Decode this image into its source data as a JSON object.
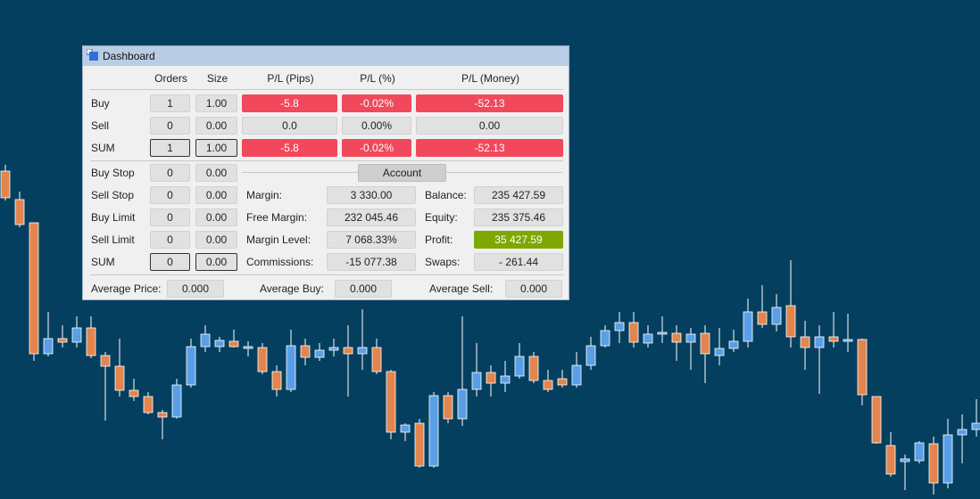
{
  "window": {
    "title": "Dashboard"
  },
  "positions": {
    "headers": [
      "Orders",
      "Size",
      "P/L (Pips)",
      "P/L (%)",
      "P/L (Money)"
    ],
    "rows": [
      {
        "label": "Buy",
        "orders": "1",
        "size": "1.00",
        "pips": "-5.8",
        "percent": "-0.02%",
        "money": "-52.13"
      },
      {
        "label": "Sell",
        "orders": "0",
        "size": "0.00",
        "pips": "0.0",
        "percent": "0.00%",
        "money": "0.00"
      },
      {
        "label": "SUM",
        "orders": "1",
        "size": "1.00",
        "pips": "-5.8",
        "percent": "-0.02%",
        "money": "-52.13"
      }
    ]
  },
  "pending": {
    "rows": [
      {
        "label": "Buy Stop",
        "orders": "0",
        "size": "0.00"
      },
      {
        "label": "Sell Stop",
        "orders": "0",
        "size": "0.00"
      },
      {
        "label": "Buy Limit",
        "orders": "0",
        "size": "0.00"
      },
      {
        "label": "Sell Limit",
        "orders": "0",
        "size": "0.00"
      },
      {
        "label": "SUM",
        "orders": "0",
        "size": "0.00"
      }
    ]
  },
  "account": {
    "title": "Account",
    "left": [
      {
        "label": "Margin:",
        "value": "3 330.00"
      },
      {
        "label": "Free Margin:",
        "value": "232 045.46"
      },
      {
        "label": "Margin Level:",
        "value": "7 068.33%"
      },
      {
        "label": "Commissions:",
        "value": "-15 077.38"
      }
    ],
    "right": [
      {
        "label": "Balance:",
        "value": "235 427.59"
      },
      {
        "label": "Equity:",
        "value": "235 375.46"
      },
      {
        "label": "Profit:",
        "value": "35 427.59"
      },
      {
        "label": "Swaps:",
        "value": "- 261.44"
      }
    ]
  },
  "averages": [
    {
      "label": "Average Price:",
      "value": "0.000"
    },
    {
      "label": "Average Buy:",
      "value": "0.000"
    },
    {
      "label": "Average Sell:",
      "value": "0.000"
    }
  ]
}
